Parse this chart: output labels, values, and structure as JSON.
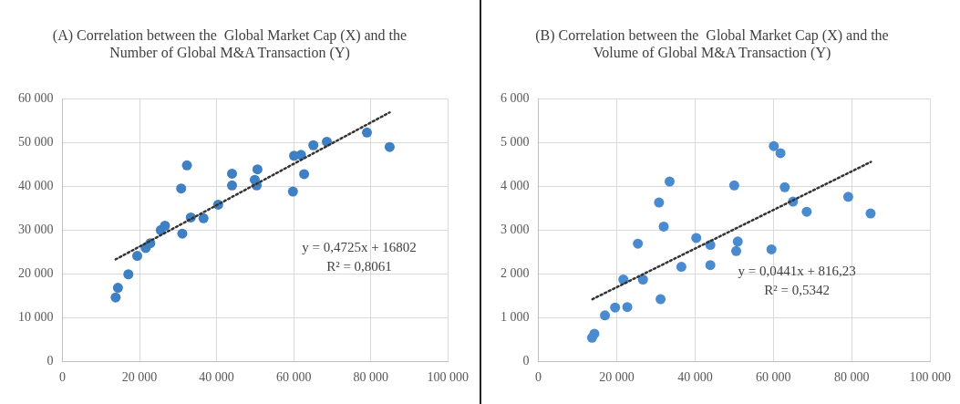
{
  "chart_data": [
    {
      "type": "scatter",
      "title": "(A) Correlation between the  Global Market Cap (X) and the\nNumber of Global M&A Transaction (Y)",
      "marker": "circle",
      "grid": true,
      "xlim": [
        0,
        100000
      ],
      "xticks": [
        {
          "value": 0,
          "label": "0"
        },
        {
          "value": 20000,
          "label": "20 000"
        },
        {
          "value": 40000,
          "label": "40 000"
        },
        {
          "value": 60000,
          "label": "60 000"
        },
        {
          "value": 80000,
          "label": "80 000"
        },
        {
          "value": 100000,
          "label": "100 000"
        }
      ],
      "ylim": [
        0,
        60000
      ],
      "yticks": [
        {
          "value": 0,
          "label": "0"
        },
        {
          "value": 10000,
          "label": "10 000"
        },
        {
          "value": 20000,
          "label": "20 000"
        },
        {
          "value": 30000,
          "label": "30 000"
        },
        {
          "value": 40000,
          "label": "40 000"
        },
        {
          "value": 50000,
          "label": "50 000"
        },
        {
          "value": 60000,
          "label": "60 000"
        }
      ],
      "annotations": [
        "y = 0,4725x + 16802",
        "R² = 0,8061"
      ],
      "series": [
        {
          "type": "scatter",
          "color": "#3f7fc4",
          "x": [
            13800,
            14400,
            17100,
            19400,
            21600,
            22800,
            25500,
            26600,
            30800,
            31100,
            32300,
            33300,
            36600,
            40400,
            44000,
            44000,
            49900,
            50400,
            50600,
            59800,
            60100,
            61900,
            62700,
            65100,
            68600,
            79000,
            84900
          ],
          "values": [
            14600,
            16800,
            19900,
            24100,
            25900,
            27000,
            30000,
            31000,
            39500,
            29200,
            44800,
            32900,
            32700,
            35800,
            42900,
            40200,
            41500,
            40200,
            43900,
            38800,
            47000,
            47200,
            42800,
            49400,
            50200,
            52300,
            49000
          ]
        },
        {
          "type": "line",
          "color": "#333333",
          "line_style": "dotted",
          "marker": "none",
          "x": [
            13800,
            84900
          ],
          "values": [
            23300,
            56900
          ]
        }
      ]
    },
    {
      "type": "scatter",
      "title": "(B) Correlation between the  Global Market Cap (X) and the\nVolume of Global M&A Transaction (Y)",
      "marker": "circle",
      "grid": true,
      "xlim": [
        0,
        100000
      ],
      "xticks": [
        {
          "value": 0,
          "label": "0"
        },
        {
          "value": 20000,
          "label": "20 000"
        },
        {
          "value": 40000,
          "label": "40 000"
        },
        {
          "value": 60000,
          "label": "60 000"
        },
        {
          "value": 80000,
          "label": "80 000"
        },
        {
          "value": 100000,
          "label": "100 000"
        }
      ],
      "ylim": [
        0,
        6000
      ],
      "yticks": [
        {
          "value": 0,
          "label": "0"
        },
        {
          "value": 1000,
          "label": "1 000"
        },
        {
          "value": 2000,
          "label": "2 000"
        },
        {
          "value": 3000,
          "label": "3 000"
        },
        {
          "value": 4000,
          "label": "4 000"
        },
        {
          "value": 5000,
          "label": "5 000"
        },
        {
          "value": 6000,
          "label": "6 000"
        }
      ],
      "annotations": [
        "y = 0,0441x + 816,23",
        "R² = 0,5342"
      ],
      "series": [
        {
          "type": "scatter",
          "color": "#4a8bd0",
          "x": [
            13700,
            14300,
            17000,
            19600,
            22700,
            21700,
            25400,
            26700,
            30800,
            32000,
            33500,
            31200,
            36500,
            40300,
            43900,
            43900,
            50000,
            50900,
            50500,
            60100,
            61800,
            62900,
            65000,
            68500,
            59500,
            79100,
            84800
          ],
          "values": [
            540,
            630,
            1050,
            1230,
            1240,
            1870,
            2690,
            1870,
            3630,
            3080,
            4110,
            1420,
            2160,
            2820,
            2660,
            2200,
            4020,
            2740,
            2520,
            4920,
            4760,
            3980,
            3650,
            3420,
            2560,
            3760,
            3380
          ]
        },
        {
          "type": "line",
          "color": "#333333",
          "line_style": "dotted",
          "marker": "none",
          "x": [
            13800,
            84900
          ],
          "values": [
            1420,
            4560
          ]
        }
      ]
    }
  ]
}
